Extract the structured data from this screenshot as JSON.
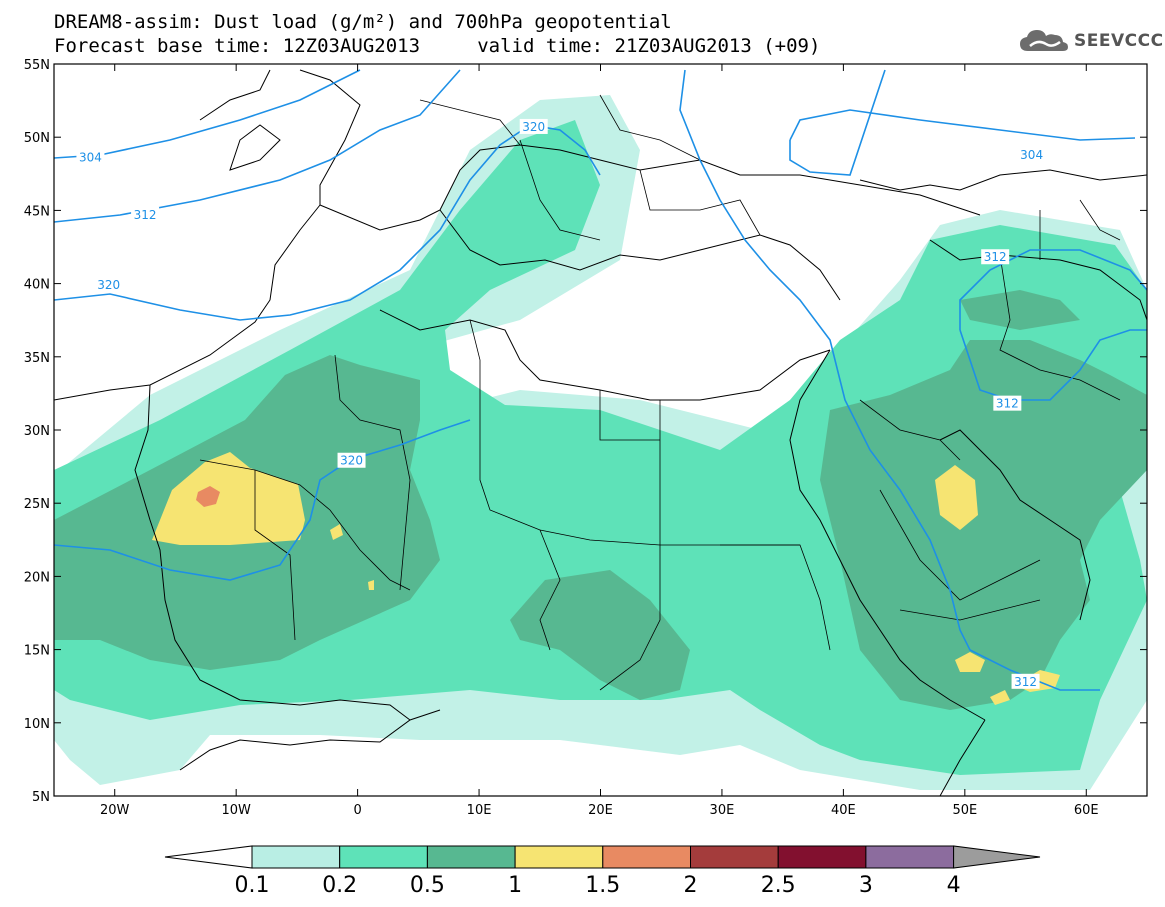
{
  "title_line1": "DREAM8-assim: Dust load (g/m²) and 700hPa geopotential",
  "title_line2": "Forecast base time: 12Z03AUG2013     valid time: 21Z03AUG2013 (+09)",
  "logo_text": "SEEVCCC",
  "map_extent": {
    "lon": [
      -25,
      65
    ],
    "lat": [
      5,
      55
    ]
  },
  "lat_labels": [
    "55N",
    "50N",
    "45N",
    "40N",
    "35N",
    "30N",
    "25N",
    "20N",
    "15N",
    "10N",
    "5N"
  ],
  "lat_values": [
    55,
    50,
    45,
    40,
    35,
    30,
    25,
    20,
    15,
    10,
    5
  ],
  "lon_labels": [
    "20W",
    "10W",
    "0",
    "10E",
    "20E",
    "30E",
    "40E",
    "50E",
    "60E"
  ],
  "lon_values": [
    -20,
    -10,
    0,
    10,
    20,
    30,
    40,
    50,
    60
  ],
  "contour_labels": [
    {
      "text": "304",
      "lon": -22,
      "lat": 48.6
    },
    {
      "text": "312",
      "lon": -17.5,
      "lat": 44.7
    },
    {
      "text": "320",
      "lon": -20.5,
      "lat": 39.9
    },
    {
      "text": "320",
      "lon": 14.5,
      "lat": 50.7
    },
    {
      "text": "320",
      "lon": -0.5,
      "lat": 27.9
    },
    {
      "text": "304",
      "lon": 55.5,
      "lat": 48.8
    },
    {
      "text": "312",
      "lon": 52.5,
      "lat": 41.8
    },
    {
      "text": "312",
      "lon": 53.5,
      "lat": 31.8
    },
    {
      "text": "312",
      "lon": 55,
      "lat": 12.8
    }
  ],
  "colorbar": {
    "labels": [
      "0.1",
      "0.2",
      "0.5",
      "1",
      "1.5",
      "2",
      "2.5",
      "3",
      "4"
    ],
    "colors": [
      "#b9eee4",
      "#5ee2b8",
      "#57b891",
      "#f6e472",
      "#e88a62",
      "#a43c3c",
      "#82102f",
      "#8c6c9e"
    ],
    "under_color": "#ffffff",
    "over_color": "#9c9c9c"
  },
  "dust_colors": {
    "c01": "#c2f1e7",
    "c02": "#5ee2b8",
    "c05": "#57b891",
    "c1": "#f6e472",
    "c15": "#e88a62"
  },
  "contour_color": "#1e90e6",
  "border_color": "#000000"
}
